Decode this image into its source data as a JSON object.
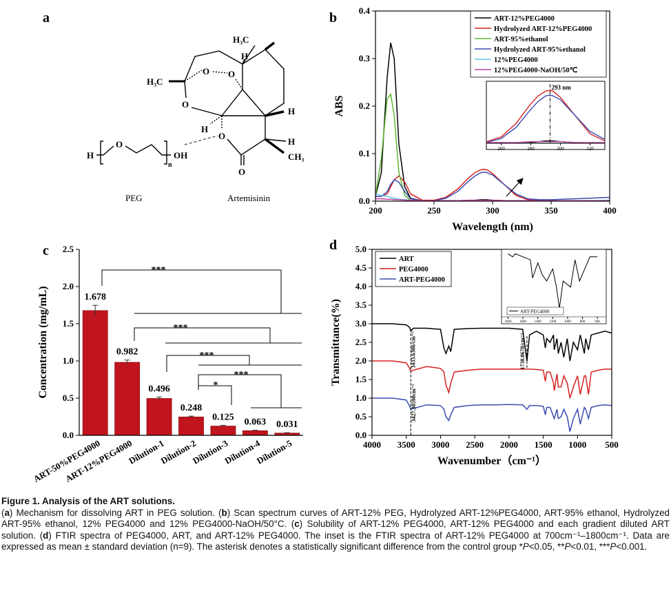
{
  "diagram": {
    "panel": "a",
    "labels": [
      "H₃C",
      "H",
      "H₃C",
      "O",
      "O",
      "O",
      "H",
      "H",
      "O",
      "H",
      "CH₃",
      "O",
      "H",
      "O",
      "n",
      "OH",
      "PEG",
      "Artemisinin"
    ]
  },
  "chart_data": [
    {
      "panel": "b",
      "type": "line",
      "x": [
        200,
        205,
        210,
        213,
        216,
        220,
        225,
        230,
        240,
        250,
        260,
        270,
        280,
        285,
        290,
        293,
        295,
        300,
        310,
        320,
        330,
        340,
        350,
        370,
        400
      ],
      "series": [
        {
          "name": "ART-12%PEG4000",
          "color": "#000000",
          "values": [
            0.01,
            0.06,
            0.26,
            0.333,
            0.3,
            0.12,
            0.03,
            0.006,
            0.001,
            0,
            0,
            0,
            0.001,
            0.002,
            0.003,
            0.003,
            0.003,
            0.002,
            0.001,
            0,
            0,
            0,
            0,
            0,
            0
          ]
        },
        {
          "name": "Hydrolyzed ART-12%PEG4000",
          "color": "#d62020",
          "values": [
            0.01,
            0.01,
            0.015,
            0.03,
            0.045,
            0.053,
            0.04,
            0.015,
            0.002,
            0.002,
            0.008,
            0.025,
            0.05,
            0.06,
            0.066,
            0.067,
            0.066,
            0.058,
            0.035,
            0.012,
            0.003,
            0.001,
            0,
            0,
            0
          ]
        },
        {
          "name": "ART-95%ethanol",
          "color": "#5cb82e",
          "values": [
            0.01,
            0.09,
            0.215,
            0.225,
            0.18,
            0.06,
            0.012,
            0.002,
            0,
            0,
            0,
            0,
            0,
            0,
            0,
            0,
            0,
            0,
            0,
            0,
            0,
            0,
            0,
            0,
            0
          ]
        },
        {
          "name": "Hydrolyzed ART-95%ethanol",
          "color": "#3a4cb0",
          "values": [
            0.01,
            0.01,
            0.02,
            0.035,
            0.045,
            0.04,
            0.02,
            0.005,
            0.001,
            0.001,
            0.006,
            0.02,
            0.043,
            0.053,
            0.06,
            0.061,
            0.06,
            0.055,
            0.035,
            0.015,
            0.005,
            0.003,
            0.003,
            0.005,
            0.008
          ]
        },
        {
          "name": "12%PEG4000",
          "color": "#5bc8e8",
          "values": [
            0.015,
            0.012,
            0.01,
            0.008,
            0.006,
            0.004,
            0.003,
            0.002,
            0.001,
            0,
            0,
            0,
            0,
            0,
            0,
            0,
            0,
            0,
            0,
            0,
            0,
            0,
            0,
            0,
            0.002
          ]
        },
        {
          "name": "12%PEG4000-NaOH/50℃",
          "color": "#c040a0",
          "values": [
            0.005,
            0.005,
            0.004,
            0.004,
            0.003,
            0.003,
            0.002,
            0.002,
            0.001,
            0.001,
            0.001,
            0.001,
            0.002,
            0.002,
            0.002,
            0.002,
            0.002,
            0.002,
            0.001,
            0.001,
            0.001,
            0.001,
            0.001,
            0.001,
            0.001
          ]
        }
      ],
      "xlim": [
        200,
        400
      ],
      "xticks": [
        200,
        250,
        300,
        350,
        400
      ],
      "ylim": [
        0,
        0.4
      ],
      "yticks": [
        {
          "value": 0,
          "label": "0.0"
        },
        0.1,
        0.2,
        0.3,
        0.4
      ],
      "xlabel": "Wavelength (nm)",
      "ylabel": "ABS",
      "legend": "upper right",
      "inset": {
        "xlim": [
          250,
          330
        ],
        "ylim": [
          0,
          0.075
        ],
        "xticks": [
          260,
          280,
          300,
          320
        ],
        "annotation": "293 nm",
        "annotation_x": 293
      }
    },
    {
      "panel": "c",
      "type": "bar",
      "categories": [
        "ART-50%PEG4000",
        "ART-12%PEG4000",
        "Dilution-1",
        "Dilution-2",
        "Dilution-3",
        "Dilution-4",
        "Dilution-5"
      ],
      "values": [
        1.678,
        0.982,
        0.496,
        0.248,
        0.125,
        0.063,
        0.031
      ],
      "errors": [
        0.07,
        0.03,
        0.02,
        0.01,
        0.01,
        0.005,
        0.005
      ],
      "color": "#c0141e",
      "ylim": [
        0,
        2.5
      ],
      "yticks": [
        {
          "value": 0,
          "label": "0.0"
        },
        0.5,
        {
          "value": 1,
          "label": "1.0"
        },
        1.5,
        {
          "value": 2,
          "label": "2.0"
        },
        2.5
      ],
      "ylabel": "Concentration (mg/mL)",
      "annotations": [
        "***",
        "***",
        "***",
        "*",
        "***"
      ]
    },
    {
      "panel": "d",
      "type": "line",
      "x": [
        4000,
        3700,
        3500,
        3450,
        3433,
        3400,
        3200,
        3000,
        2950,
        2920,
        2880,
        2850,
        2800,
        2600,
        2400,
        2200,
        2000,
        1800,
        1738,
        1700,
        1600,
        1500,
        1470,
        1450,
        1400,
        1350,
        1340,
        1300,
        1280,
        1240,
        1200,
        1150,
        1110,
        1060,
        1000,
        960,
        900,
        880,
        840,
        800,
        700,
        600,
        500
      ],
      "series": [
        {
          "name": "ART",
          "color": "#000000",
          "values": [
            3.0,
            3.0,
            2.97,
            2.9,
            2.8,
            2.88,
            2.88,
            2.85,
            2.35,
            2.2,
            2.4,
            2.25,
            2.85,
            2.87,
            2.88,
            2.88,
            2.88,
            2.85,
            2.0,
            2.7,
            2.8,
            2.7,
            2.35,
            2.6,
            2.5,
            2.7,
            2.3,
            2.6,
            2.2,
            2.5,
            2.1,
            2.6,
            2.0,
            2.5,
            2.3,
            2.7,
            2.2,
            2.6,
            2.3,
            2.7,
            2.75,
            2.8,
            2.75
          ]
        },
        {
          "name": "PEG4000",
          "color": "#d62020",
          "values": [
            2.0,
            2.0,
            1.95,
            1.8,
            1.72,
            1.75,
            1.85,
            1.8,
            1.7,
            1.35,
            1.15,
            1.4,
            1.7,
            1.75,
            1.78,
            1.78,
            1.78,
            1.78,
            1.78,
            1.78,
            1.77,
            1.75,
            1.45,
            1.7,
            1.7,
            1.4,
            1.2,
            1.65,
            1.3,
            1.3,
            1.6,
            1.4,
            1.0,
            1.3,
            1.6,
            1.1,
            1.6,
            1.6,
            1.1,
            1.7,
            1.75,
            1.78,
            1.78
          ]
        },
        {
          "name": "ART-PEG4000",
          "color": "#3a4cb0",
          "values": [
            1.0,
            1.0,
            0.95,
            0.78,
            0.7,
            0.72,
            0.82,
            0.8,
            0.7,
            0.5,
            0.4,
            0.55,
            0.75,
            0.8,
            0.82,
            0.82,
            0.83,
            0.82,
            0.7,
            0.8,
            0.8,
            0.78,
            0.55,
            0.75,
            0.75,
            0.5,
            0.45,
            0.7,
            0.45,
            0.5,
            0.7,
            0.5,
            0.1,
            0.45,
            0.7,
            0.3,
            0.75,
            0.7,
            0.45,
            0.75,
            0.8,
            0.82,
            0.8
          ]
        }
      ],
      "xlim": [
        4000,
        500
      ],
      "xticks": [
        4000,
        3500,
        3000,
        2500,
        2000,
        1500,
        1000,
        500
      ],
      "ylim": [
        0,
        5
      ],
      "yticks": [
        {
          "value": 0,
          "label": "0.0"
        },
        0.5,
        {
          "value": 1,
          "label": "1.0"
        },
        1.5,
        {
          "value": 2,
          "label": "2.0"
        },
        2.5,
        {
          "value": 3,
          "label": "3.0"
        },
        3.5,
        {
          "value": 4,
          "label": "4.0"
        },
        4.5,
        {
          "value": 5,
          "label": "5.0"
        }
      ],
      "xlabel": "Wavenumber（cm⁻¹）",
      "ylabel": "Transmittance(%)",
      "legend": "upper left",
      "annotations": [
        {
          "text": "3433.6386/cm⁻¹",
          "x": 3433.6386
        },
        {
          "text": "1738.0678/cm⁻¹",
          "x": 1738.0678
        },
        {
          "text": "3427.38598cm⁻¹",
          "x": 3427.38598
        }
      ],
      "inset": {
        "series": [
          {
            "name": "ART-PEG4000",
            "color": "#000000",
            "x": [
              1800,
              1738,
              1700,
              1600,
              1500,
              1470,
              1400,
              1340,
              1280,
              1200,
              1150,
              1110,
              1060,
              960,
              900,
              840,
              700,
              600
            ],
            "values": [
              0.95,
              0.9,
              0.95,
              0.9,
              0.85,
              0.55,
              0.8,
              0.6,
              0.5,
              0.7,
              0.4,
              0.05,
              0.5,
              0.4,
              0.85,
              0.5,
              0.9,
              0.9
            ]
          }
        ],
        "xlim": [
          1850,
          500
        ],
        "xticks": [
          1800,
          1600,
          1400,
          1200,
          1000,
          800,
          600
        ],
        "ylim": [
          0,
          1
        ]
      }
    }
  ],
  "caption": {
    "title": "Figure 1. Analysis of the ART solutions.",
    "body": [
      "(",
      "a",
      ") Mechanism for dissolving ART in PEG solution. (",
      "b",
      ") Scan spectrum curves of ART-12% PEG, Hydrolyzed ART-12%PEG4000, ART-95% ethanol, Hydrolyzed ART-95% ethanol, 12% PEG4000 and 12% PEG4000-NaOH/50°C. (",
      "c",
      ") Solubility of ART-12% PEG4000, ART-12% PEG4000 and each gradient diluted ART solution. (",
      "d",
      ") FTIR spectra of PEG4000, ART, and ART-12% PEG4000. The inset is the FTIR spectra of ART-12% PEG4000 at 700cm⁻¹–1800cm⁻¹. Data are expressed as mean ± standard deviation (n=9). The asterisk denotes a statistically significant difference from the control group *",
      "P",
      "<0.05, **",
      "P",
      "<0.01, ***",
      "P",
      "<0.001."
    ]
  }
}
